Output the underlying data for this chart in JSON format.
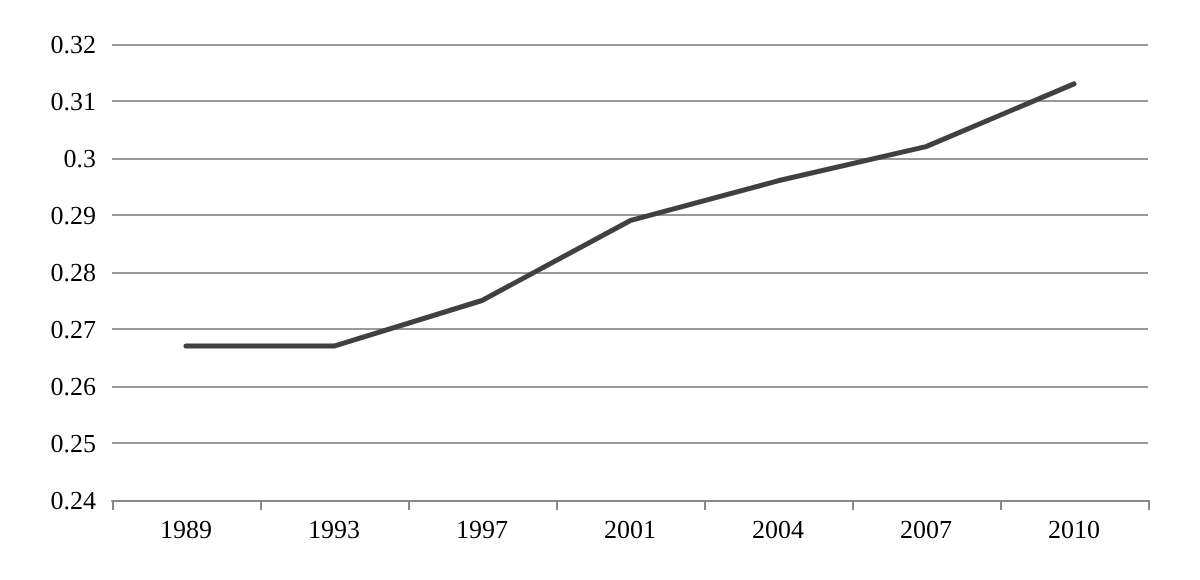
{
  "chart_data": {
    "type": "line",
    "categories": [
      "1989",
      "1993",
      "1997",
      "2001",
      "2004",
      "2007",
      "2010"
    ],
    "series": [
      {
        "color": "#404040",
        "values": [
          0.267,
          0.267,
          0.275,
          0.289,
          0.296,
          0.302,
          0.313
        ]
      }
    ],
    "ylim": [
      0.24,
      0.32
    ],
    "yticks": [
      0.24,
      0.25,
      0.26,
      0.27,
      0.28,
      0.29,
      0.3,
      0.31,
      0.32
    ],
    "grid": "y",
    "marker": "none",
    "line_style": "solid"
  }
}
